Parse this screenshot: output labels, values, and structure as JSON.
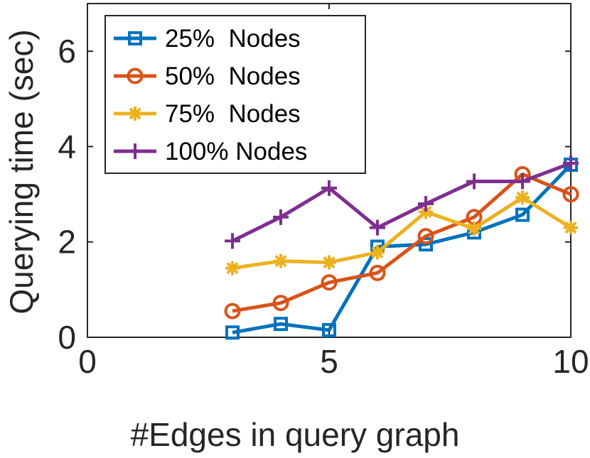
{
  "chart_data": {
    "type": "line",
    "xlabel": "#Edges in query graph",
    "ylabel": "Querying time (sec)",
    "xlim": [
      0,
      10
    ],
    "ylim": [
      0,
      7
    ],
    "xticks": [
      0,
      5,
      10
    ],
    "yticks": [
      0,
      2,
      4,
      6
    ],
    "grid": false,
    "legend_position": "top-left",
    "x": [
      3,
      4,
      5,
      6,
      7,
      8,
      9,
      10
    ],
    "series": [
      {
        "name": "25%  Nodes",
        "color": "#0072BD",
        "marker": "square",
        "values": [
          0.1,
          0.28,
          0.15,
          1.9,
          1.95,
          2.2,
          2.57,
          3.62
        ]
      },
      {
        "name": "50%  Nodes",
        "color": "#D95319",
        "marker": "circle",
        "values": [
          0.55,
          0.72,
          1.15,
          1.35,
          2.12,
          2.52,
          3.42,
          3.0
        ]
      },
      {
        "name": "75%  Nodes",
        "color": "#EDB120",
        "marker": "asterisk",
        "values": [
          1.45,
          1.6,
          1.57,
          1.78,
          2.63,
          2.28,
          2.93,
          2.3
        ]
      },
      {
        "name": "100% Nodes",
        "color": "#7E2F8E",
        "marker": "plus",
        "values": [
          2.02,
          2.52,
          3.13,
          2.3,
          2.8,
          3.27,
          3.27,
          3.65
        ]
      }
    ]
  }
}
